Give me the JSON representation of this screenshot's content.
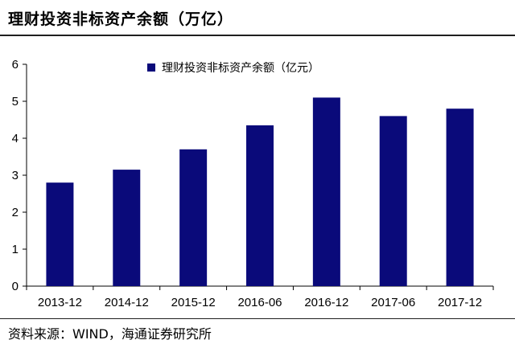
{
  "header": {
    "title": "理财投资非标资产余额（万亿）"
  },
  "footer": {
    "source": "资料来源：WIND，海通证券研究所"
  },
  "chart_data": {
    "type": "bar",
    "title": "理财投资非标资产余额（万亿）",
    "xlabel": "",
    "ylabel": "",
    "categories": [
      "2013-12",
      "2014-12",
      "2015-12",
      "2016-06",
      "2016-12",
      "2017-06",
      "2017-12"
    ],
    "series": [
      {
        "name": "理财投资非标资产余额（亿元）",
        "values": [
          2.8,
          3.15,
          3.7,
          4.35,
          5.1,
          4.6,
          4.8
        ],
        "color": "#0a0a7a"
      }
    ],
    "ylim": [
      0,
      6
    ],
    "yticks": [
      "0",
      "1",
      "2",
      "3",
      "4",
      "5",
      "6"
    ],
    "grid": false,
    "legend_position": "top-center"
  }
}
